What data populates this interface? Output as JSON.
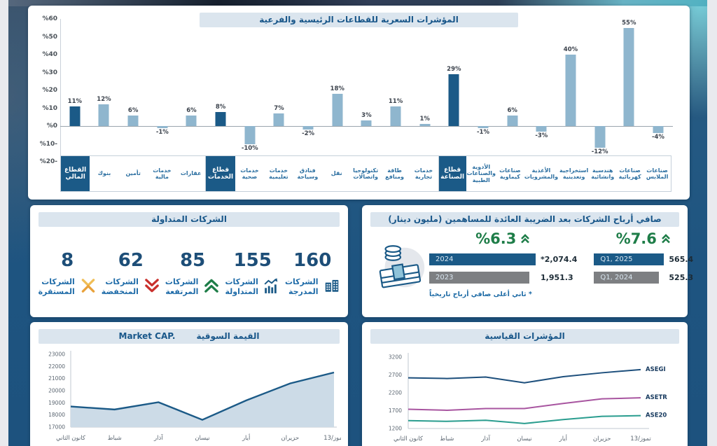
{
  "chart_data": [
    {
      "type": "bar",
      "id": "sector-price-indices",
      "title": "المؤشرات السعرية للقطاعات الرئيسية والفرعية",
      "ylim": [
        -20,
        60
      ],
      "y_tick_labels": [
        "%60",
        "%50",
        "%40",
        "%30",
        "%20",
        "%10",
        "%0",
        "%10-",
        "%20-"
      ],
      "y_tick_values": [
        60,
        50,
        40,
        30,
        20,
        10,
        0,
        -10,
        -20
      ],
      "bar_color": "#8fb6ce",
      "header_bar_color": "#1b5a87",
      "groups": [
        {
          "header_index": 0,
          "categories": [
            "القطاع المالي",
            "بنوك",
            "تأمين",
            "خدمات مالية",
            "عقارات"
          ],
          "values": [
            11,
            12,
            6,
            -1,
            6
          ]
        },
        {
          "header_index": 0,
          "categories": [
            "قطاع الخدمات",
            "خدمات صحية",
            "خدمات تعليمية",
            "فنادق وسياحة",
            "نقل",
            "تكنولوجيا واتصالات",
            "طاقة ومنافع",
            "خدمات تجارية"
          ],
          "values": [
            8,
            -10,
            7,
            -2,
            18,
            3,
            11,
            1
          ]
        },
        {
          "header_index": 0,
          "categories": [
            "قطاع الصناعة",
            "الأدوية والصناعات الطبية",
            "صناعات كيماوية",
            "الأغذية والمشروبات",
            "استخراجية وتعدينية",
            "هندسية وانشائية",
            "صناعات كهربائية",
            "صناعات الملابس"
          ],
          "values": [
            29,
            -1,
            6,
            -3,
            40,
            -12,
            55,
            -4
          ]
        }
      ]
    },
    {
      "type": "bar",
      "orientation": "horizontal",
      "id": "net-profits",
      "title": "صافي أرباح الشركات بعد الضريبة العائدة للمساهمين (مليون دينار)",
      "accent_green": "#1e7d48",
      "footnote": "* ثاني أعلى صافي أرباح تاريخياً",
      "groups": [
        {
          "change_pct": "%6.3",
          "bars": [
            {
              "label": "2024",
              "value": 2074.4,
              "display": "*2,074.4",
              "color": "#1b5a87"
            },
            {
              "label": "2023",
              "value": 1951.3,
              "display": "1,951.3",
              "color": "#7d7f82"
            }
          ]
        },
        {
          "change_pct": "%7.6",
          "bars": [
            {
              "label": "Q1, 2025",
              "value": 565.4,
              "display": "565.4",
              "color": "#1b5a87"
            },
            {
              "label": "Q1, 2024",
              "value": 525.3,
              "display": "525.3",
              "color": "#7d7f82"
            }
          ]
        }
      ]
    },
    {
      "type": "area",
      "id": "market-cap",
      "title_ar": "القيمة السوقية",
      "title_en": "Market CAP.",
      "ylim": [
        17000,
        23000
      ],
      "y_ticks": [
        23000,
        22000,
        21000,
        20000,
        19000,
        18000,
        17000
      ],
      "x_labels": [
        "كانون الثاني",
        "شباط",
        "آذار",
        "نيسان",
        "أيار",
        "حزيران",
        "13/تموز"
      ],
      "values": [
        18700,
        18450,
        19050,
        17600,
        19200,
        20600,
        21500
      ],
      "line_color": "#1b5a87",
      "fill_color": "#ccdbe7"
    },
    {
      "type": "line",
      "id": "benchmark-indices",
      "title": "المؤشرات القياسية",
      "ylim": [
        1200,
        3200
      ],
      "y_ticks": [
        3200,
        2700,
        2200,
        1700,
        1200
      ],
      "x_labels": [
        "كانون الثاني",
        "شباط",
        "آذار",
        "نيسان",
        "أيار",
        "حزيران",
        "13/تموز"
      ],
      "series": [
        {
          "name": "ASEGI",
          "color": "#1d4f7c",
          "values": [
            2620,
            2600,
            2640,
            2480,
            2650,
            2760,
            2850
          ]
        },
        {
          "name": "ASETR",
          "color": "#a855a0",
          "values": [
            1740,
            1710,
            1760,
            1760,
            1900,
            2030,
            2060
          ]
        },
        {
          "name": "ASE20",
          "color": "#2a9d8f",
          "values": [
            1420,
            1400,
            1430,
            1340,
            1450,
            1540,
            1560
          ]
        }
      ]
    }
  ],
  "companies": {
    "title": "الشركات المتداولة",
    "items": [
      {
        "value": "160",
        "label": [
          "الشركات",
          "المدرجة"
        ],
        "icon": "listed-companies-icon",
        "color": "#1b5a87"
      },
      {
        "value": "155",
        "label": [
          "الشركات",
          "المتداولة"
        ],
        "icon": "traded-chart-icon",
        "color": "#1b5a87"
      },
      {
        "value": "85",
        "label": [
          "الشركات",
          "المرتفعة"
        ],
        "icon": "rising-icon",
        "color": "#1e7d48"
      },
      {
        "value": "62",
        "label": [
          "الشركات",
          "المنخفضة"
        ],
        "icon": "declining-icon",
        "color": "#c9302c"
      },
      {
        "value": "8",
        "label": [
          "الشركات",
          "المستقرة"
        ],
        "icon": "stable-icon",
        "color": "#e9a23b"
      }
    ]
  }
}
